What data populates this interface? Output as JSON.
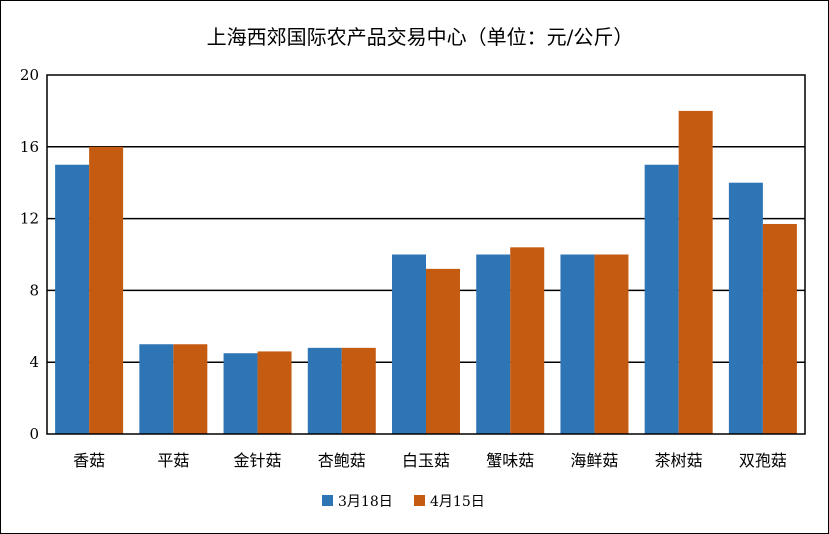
{
  "chart_data": {
    "type": "bar",
    "title": "上海西郊国际农产品交易中心（单位：元/公斤）",
    "xlabel": "",
    "ylabel": "",
    "ylim": [
      0,
      20
    ],
    "yticks": [
      0,
      4,
      8,
      12,
      16,
      20
    ],
    "grid": true,
    "legend_position": "bottom",
    "categories": [
      "香菇",
      "平菇",
      "金针菇",
      "杏鲍菇",
      "白玉菇",
      "蟹味菇",
      "海鲜菇",
      "茶树菇",
      "双孢菇"
    ],
    "series": [
      {
        "name": "3月18日",
        "color": "#2E75B6",
        "values": [
          15,
          5,
          4.5,
          4.8,
          10,
          10,
          10,
          15,
          14
        ]
      },
      {
        "name": "4月15日",
        "color": "#C55A11",
        "values": [
          16,
          5,
          4.6,
          4.8,
          9.2,
          10.4,
          10,
          18,
          11.7
        ]
      }
    ]
  }
}
